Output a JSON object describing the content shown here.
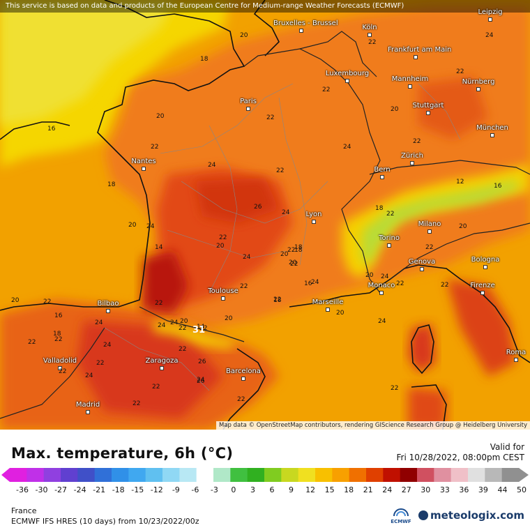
{
  "top_note": "This service is based on data and products of the European Centre for Medium-range Weather Forecasts (ECMWF)",
  "attribution": "Map data © OpenStreetMap contributors, rendering GIScience Research Group @ Heidelberg University",
  "title": "Max. temperature, 6h (°C)",
  "valid_label": "Valid for",
  "valid_time": "Fri 10/28/2022, 08:00pm CEST",
  "region": "France",
  "model_run": "ECMWF IFS HRES (10 days) from  10/23/2022/00z",
  "ecmwf_text": "ECMWF",
  "brand": "meteologix.com",
  "legend_ticks": [
    "-36",
    "-30",
    "-27",
    "-24",
    "-21",
    "-18",
    "-15",
    "-12",
    "-9",
    "-6",
    "-3",
    "0",
    "3",
    "6",
    "9",
    "12",
    "15",
    "18",
    "21",
    "24",
    "27",
    "30",
    "33",
    "36",
    "39",
    "44",
    "50"
  ],
  "colors": {
    "sea": "#f2a100",
    "warm": "#f07c1a",
    "hot": "#e24a14",
    "hotter": "#c41e10",
    "cool": "#f5d600",
    "alps": "#b8dc38"
  },
  "cities": [
    {
      "name": "Bruxelles - Brussel"
    },
    {
      "name": "Köln"
    },
    {
      "name": "Leipzig"
    },
    {
      "name": "Frankfurt am Main"
    },
    {
      "name": "Luxembourg"
    },
    {
      "name": "Mannheim"
    },
    {
      "name": "Nürnberg"
    },
    {
      "name": "Paris"
    },
    {
      "name": "Stuttgart"
    },
    {
      "name": "München"
    },
    {
      "name": "Nantes"
    },
    {
      "name": "Zürich"
    },
    {
      "name": "Bern"
    },
    {
      "name": "Lyon"
    },
    {
      "name": "Milano"
    },
    {
      "name": "Torino"
    },
    {
      "name": "Genova"
    },
    {
      "name": "Bologna"
    },
    {
      "name": "Toulouse"
    },
    {
      "name": "Monaco"
    },
    {
      "name": "Marseille"
    },
    {
      "name": "Firenze"
    },
    {
      "name": "Bilbao"
    },
    {
      "name": "Valladolid"
    },
    {
      "name": "Zaragoza"
    },
    {
      "name": "Barcelona"
    },
    {
      "name": "Roma"
    },
    {
      "name": "Madrid"
    }
  ],
  "temp_labels": [
    "20",
    "18",
    "16",
    "20",
    "22",
    "18",
    "20",
    "24",
    "22",
    "24",
    "26",
    "24",
    "22",
    "24",
    "22",
    "20",
    "18",
    "24",
    "22",
    "20",
    "22",
    "20",
    "22",
    "18",
    "16",
    "14",
    "12",
    "16",
    "20",
    "22",
    "22",
    "22",
    "24",
    "20",
    "22",
    "22",
    "22",
    "24",
    "24",
    "24",
    "24",
    "26",
    "24",
    "22",
    "22",
    "22",
    "22",
    "22",
    "22",
    "20",
    "20",
    "18",
    "18",
    "22",
    "22",
    "22",
    "22",
    "31",
    "20",
    "24",
    "14",
    "22",
    "26",
    "24",
    "22",
    "22",
    "22",
    "22",
    "22",
    "24",
    "20",
    "18",
    "16",
    "20",
    "24",
    "24"
  ]
}
